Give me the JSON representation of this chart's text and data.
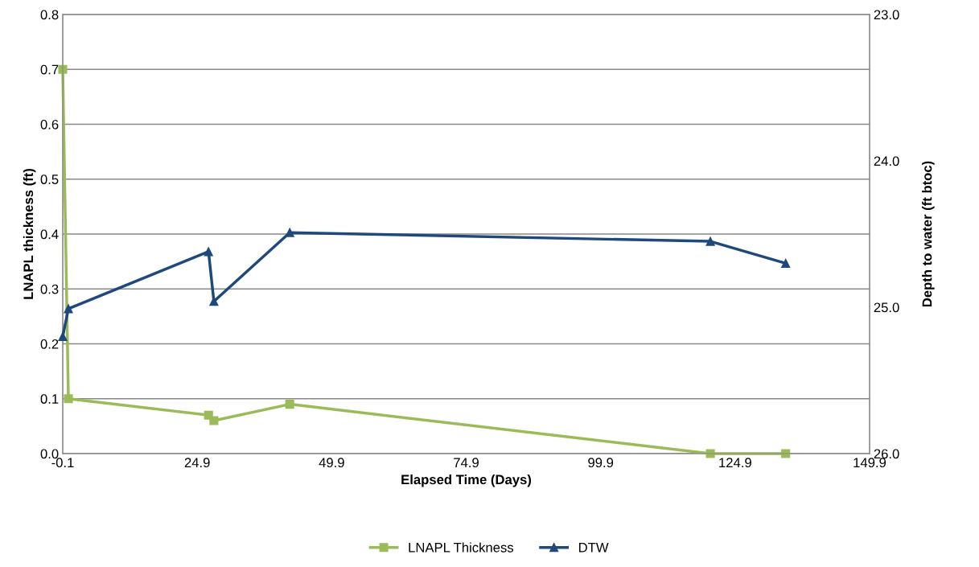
{
  "chart_data": {
    "type": "line",
    "xlabel": "Elapsed Time (Days)",
    "ylabel": "LNAPL thickness (ft)",
    "y2label": "Depth to water (ft btoc)",
    "xlim": [
      -0.1,
      149.9
    ],
    "xticks": [
      -0.1,
      24.9,
      49.9,
      74.9,
      99.9,
      124.9,
      149.9
    ],
    "ylim": [
      0,
      0.8
    ],
    "yticks": [
      {
        "value": 0,
        "label": "0.0"
      },
      0.1,
      0.2,
      0.3,
      0.4,
      0.5,
      0.6,
      0.7,
      0.8
    ],
    "y2lim": [
      26.0,
      23.0
    ],
    "y2ticks": [
      {
        "value": 26,
        "label": "26.0"
      },
      {
        "value": 25,
        "label": "25.0"
      },
      {
        "value": 24,
        "label": "24.0"
      },
      {
        "value": 23,
        "label": "23.0"
      }
    ],
    "grid": "y",
    "legend": "bottom",
    "series": [
      {
        "name": "LNAPL Thickness",
        "color": "#9bbb59",
        "marker": "square",
        "x": [
          -0.1,
          0.95,
          27.0,
          28.0,
          42.1,
          120.3,
          134.3
        ],
        "values": [
          0.7,
          0.1,
          0.07,
          0.06,
          0.09,
          0.0,
          0.0
        ]
      },
      {
        "name": "DTW",
        "color": "#1f497d",
        "marker": "triangle",
        "axis": "y2",
        "x": [
          -0.1,
          0.95,
          27.0,
          28.0,
          42.1,
          120.3,
          134.3
        ],
        "values": [
          25.2,
          25.01,
          24.62,
          24.96,
          24.49,
          24.55,
          24.7
        ]
      }
    ]
  }
}
